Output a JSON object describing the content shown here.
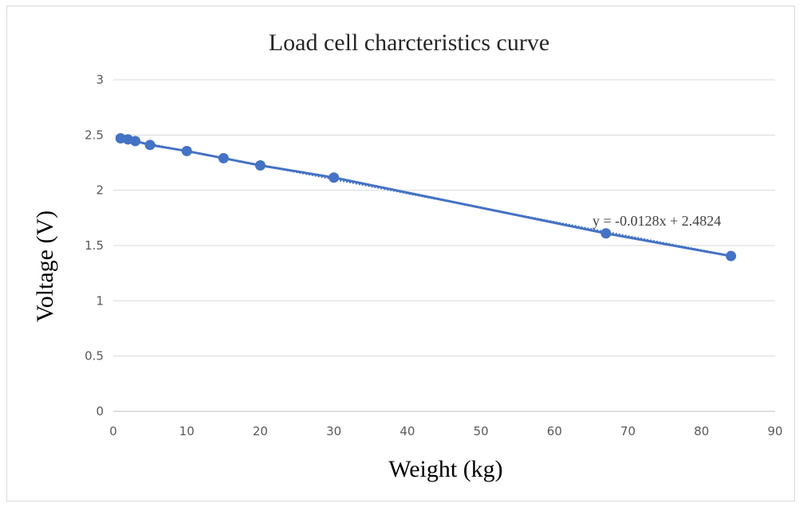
{
  "chart_data": {
    "type": "scatter",
    "title": "Load cell charcteristics curve",
    "xlabel": "Weight (kg)",
    "ylabel": "Voltage (V)",
    "xlim": [
      0,
      90
    ],
    "ylim": [
      0,
      3
    ],
    "x_ticks": [
      "0",
      "10",
      "20",
      "30",
      "40",
      "50",
      "60",
      "70",
      "80",
      "90"
    ],
    "y_ticks": [
      "0",
      "0.5",
      "1",
      "1.5",
      "2",
      "2.5",
      "3"
    ],
    "grid": "horizontal",
    "legend": "none",
    "series": [
      {
        "x": [
          1,
          2,
          3,
          5,
          10,
          15,
          20,
          30,
          67,
          84
        ],
        "y": [
          2.47,
          2.46,
          2.445,
          2.41,
          2.355,
          2.29,
          2.225,
          2.115,
          1.61,
          1.405
        ],
        "color": "#4472C4",
        "line": "connected"
      }
    ],
    "trendline": {
      "equation": "y = -0.0128x + 2.4824",
      "slope": -0.0128,
      "intercept": 2.4824,
      "style": "dotted",
      "color": "#4472C4"
    }
  }
}
